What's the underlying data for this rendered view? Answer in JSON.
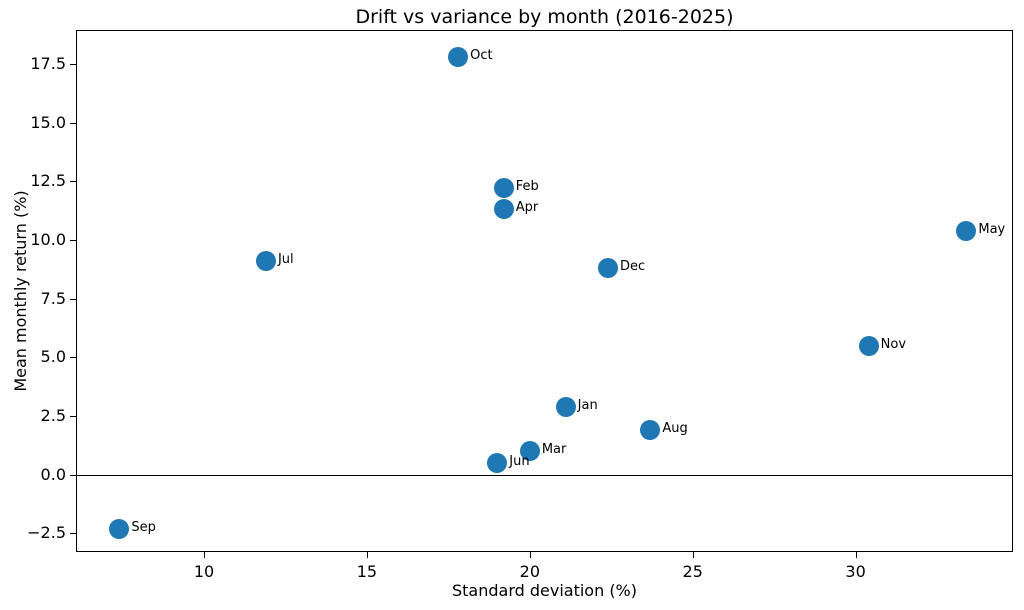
{
  "figure": {
    "background": "#ffffff",
    "spine_color": "#000000",
    "text_color": "#000000"
  },
  "chart_data": {
    "type": "scatter",
    "title": "Drift vs variance by month (2016-2025)",
    "xlabel": "Standard deviation (%)",
    "ylabel": "Mean monthly return (%)",
    "xlim": [
      6.1,
      34.8
    ],
    "ylim": [
      -3.25,
      18.9
    ],
    "x_ticks": [
      10,
      15,
      20,
      25,
      30
    ],
    "x_tick_labels": [
      "10",
      "15",
      "20",
      "25",
      "30"
    ],
    "y_ticks": [
      17.5,
      15.0,
      12.5,
      10.0,
      7.5,
      5.0,
      2.5,
      0.0,
      -2.5
    ],
    "y_tick_labels": [
      "17.5",
      "15.0",
      "12.5",
      "10.0",
      "7.5",
      "5.0",
      "2.5",
      "0.0",
      "−2.5"
    ],
    "grid": false,
    "legend": "none",
    "marker_color": "#1f77b4",
    "zero_line": {
      "y": 0,
      "color": "#000000"
    },
    "points": [
      {
        "label": "Jan",
        "x": 21.1,
        "y": 2.9
      },
      {
        "label": "Feb",
        "x": 19.2,
        "y": 12.2
      },
      {
        "label": "Mar",
        "x": 20.0,
        "y": 1.0
      },
      {
        "label": "Apr",
        "x": 19.2,
        "y": 11.3
      },
      {
        "label": "May",
        "x": 33.4,
        "y": 10.4
      },
      {
        "label": "Jun",
        "x": 19.0,
        "y": 0.5
      },
      {
        "label": "Jul",
        "x": 11.9,
        "y": 9.1
      },
      {
        "label": "Aug",
        "x": 23.7,
        "y": 1.9
      },
      {
        "label": "Sep",
        "x": 7.4,
        "y": -2.3
      },
      {
        "label": "Oct",
        "x": 17.8,
        "y": 17.8
      },
      {
        "label": "Nov",
        "x": 30.4,
        "y": 5.5
      },
      {
        "label": "Dec",
        "x": 22.4,
        "y": 8.8
      }
    ]
  }
}
